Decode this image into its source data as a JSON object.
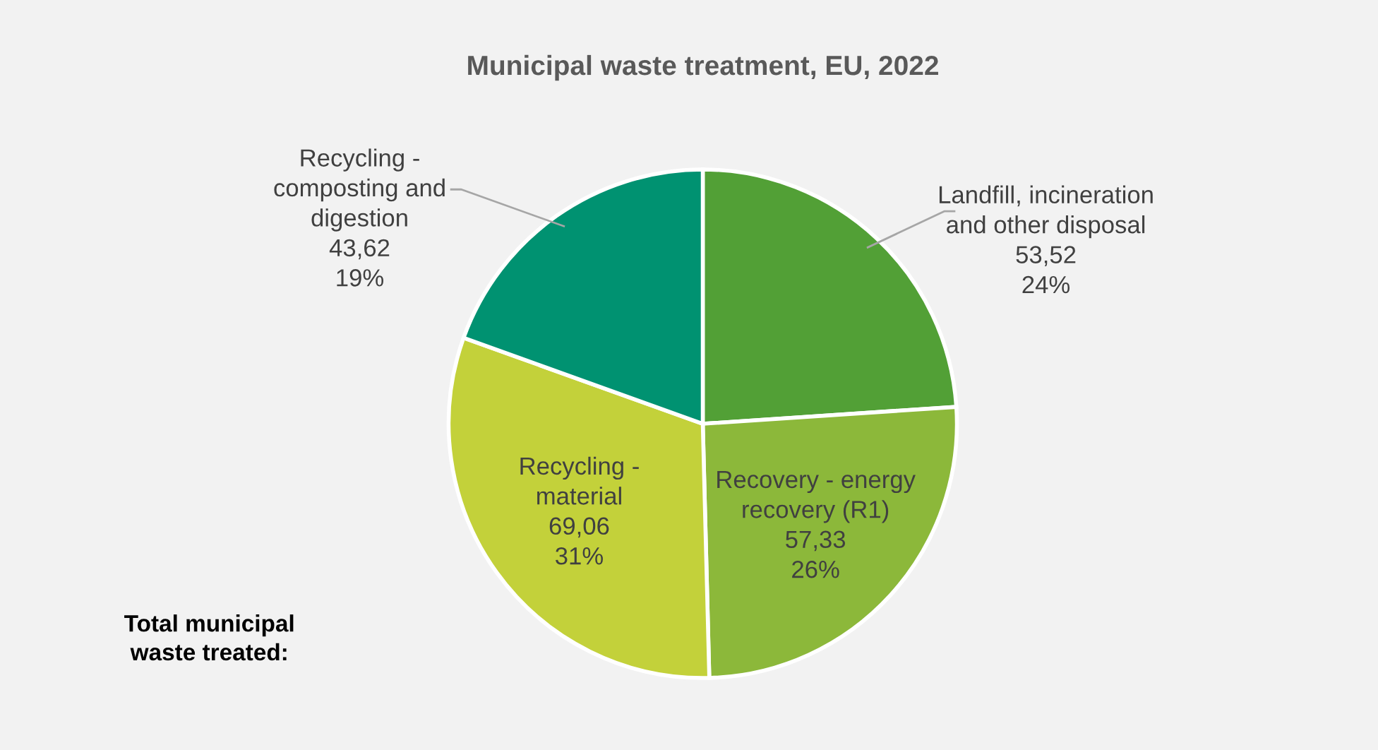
{
  "chart_data": {
    "type": "pie",
    "title": "Municipal waste treatment, EU, 2022",
    "categories": [
      "Landfill, incineration\nand other disposal",
      "Recovery - energy\nrecovery (R1)",
      "Recycling -\nmaterial",
      "Recycling -\ncomposting and\ndigestion"
    ],
    "values": [
      53.52,
      57.33,
      69.06,
      43.62
    ],
    "value_labels": [
      "53,52\n24%",
      "57,33\n26%",
      "69,06\n31%",
      "43,62\n19%"
    ],
    "colors": [
      "#52a036",
      "#8cb83a",
      "#c3d13a",
      "#009271"
    ],
    "annotations": [
      "Total municipal\nwaste treated:"
    ]
  }
}
